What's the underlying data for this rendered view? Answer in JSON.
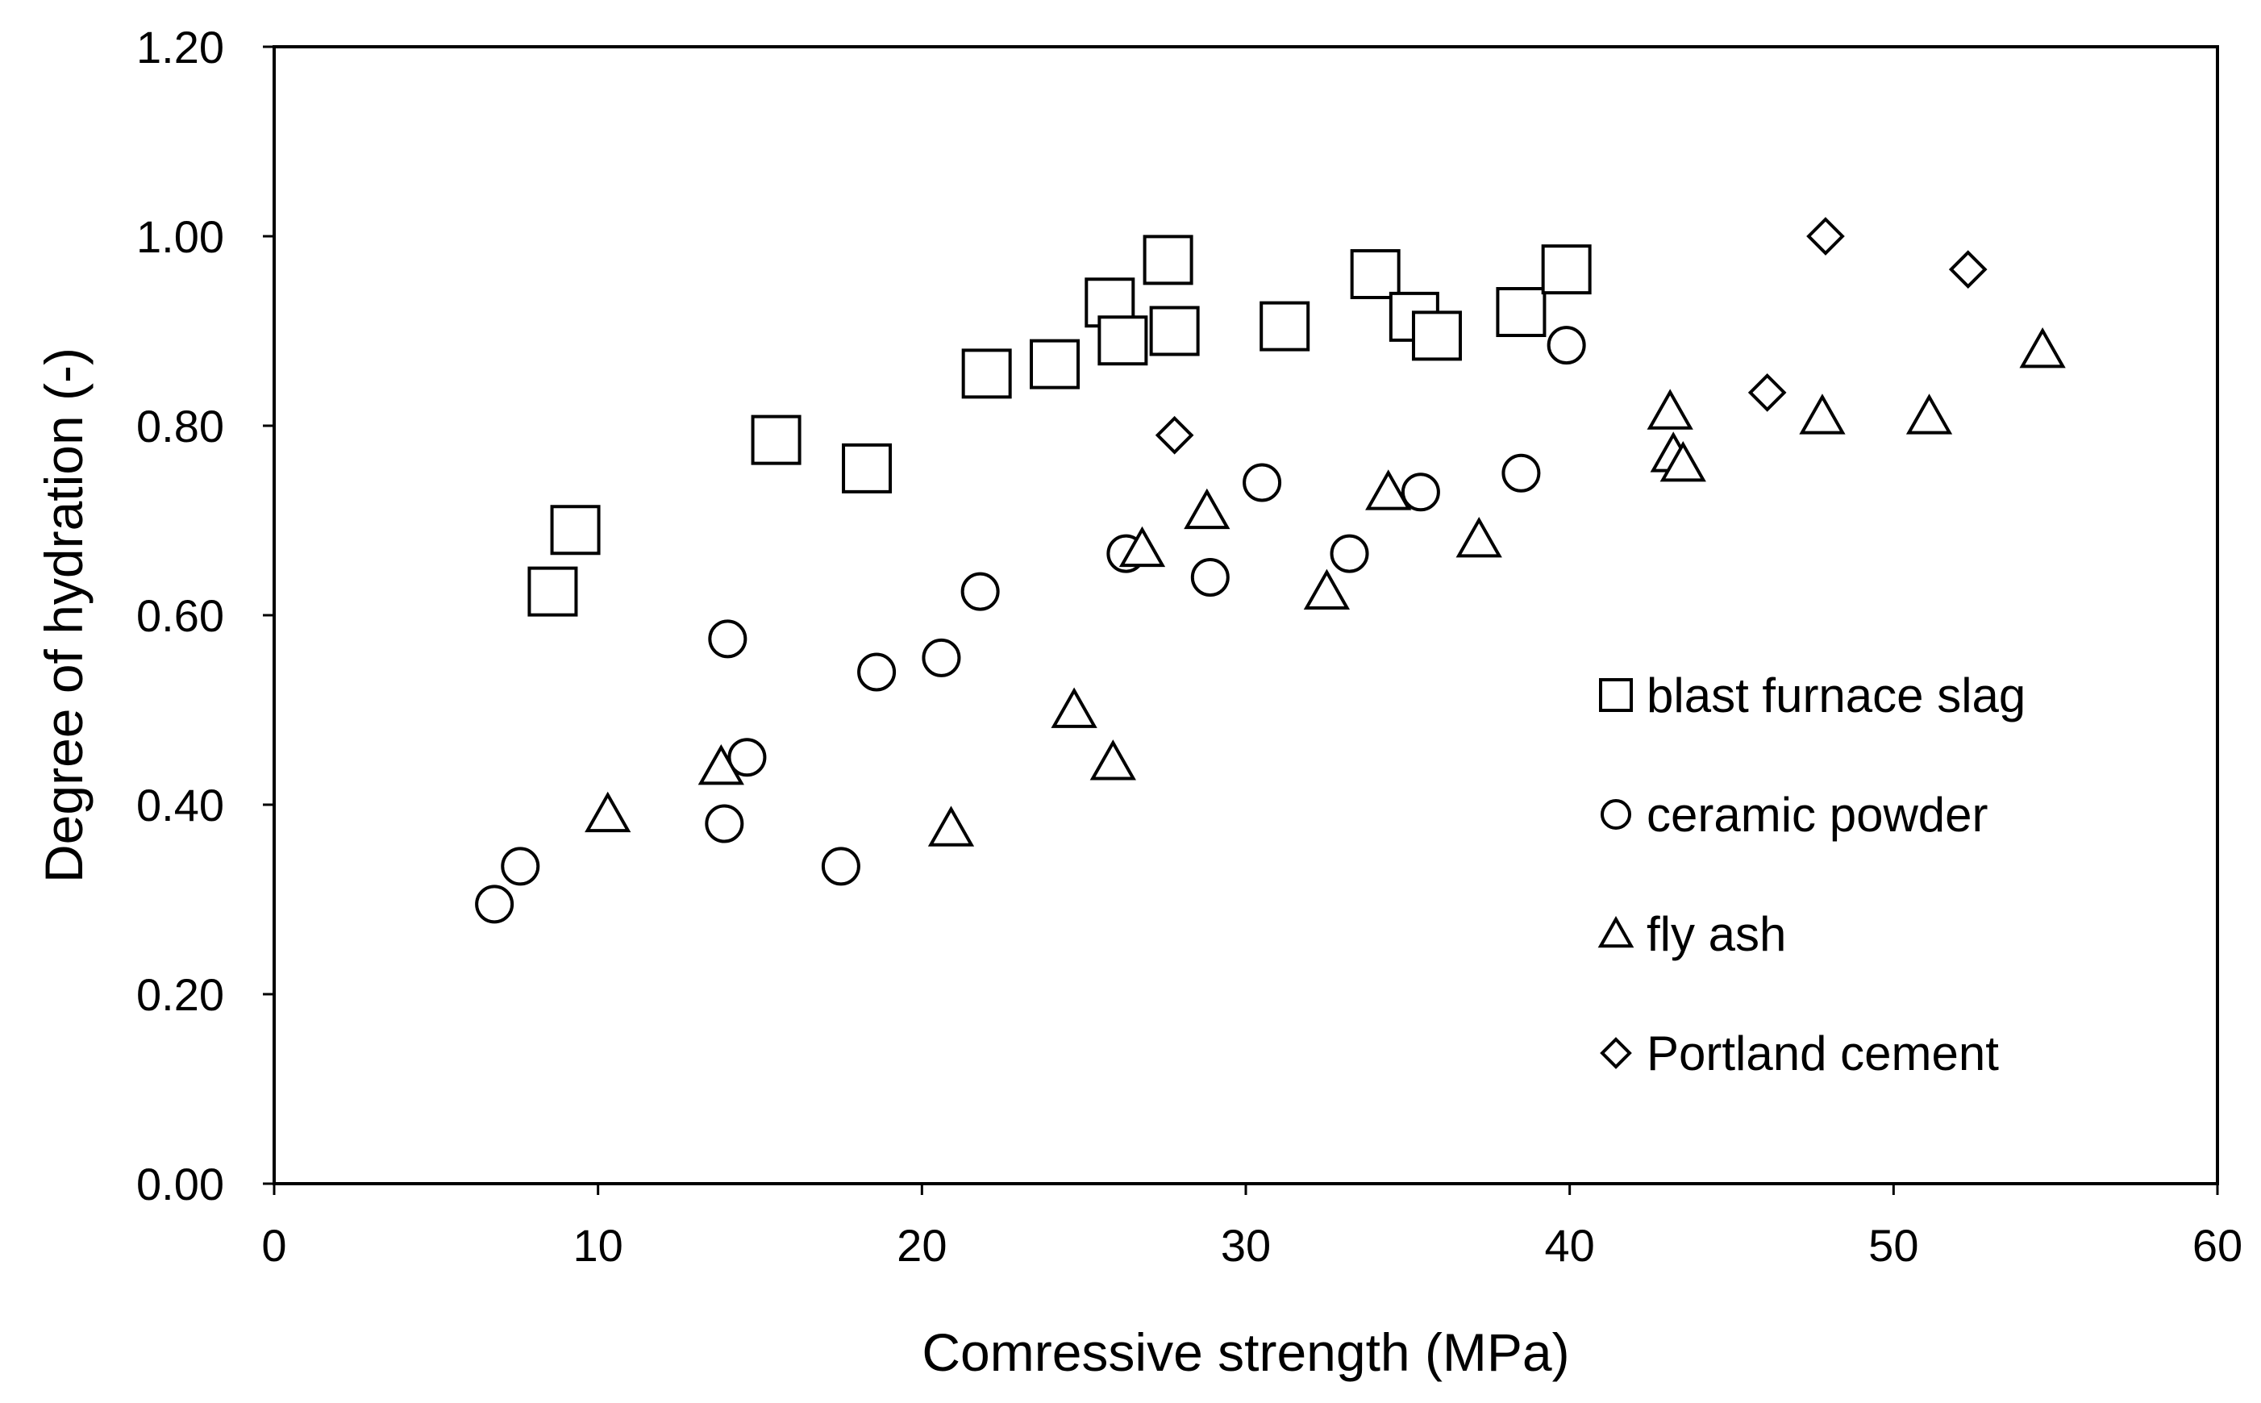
{
  "chart_data": {
    "type": "scatter",
    "title": "",
    "xlabel": "Comressive strength (MPa)",
    "ylabel": "Degree of hydration (-)",
    "xlim": [
      0,
      60
    ],
    "ylim": [
      0,
      1.2
    ],
    "xticks": [
      0,
      10,
      20,
      30,
      40,
      50,
      60
    ],
    "xtick_labels": [
      "0",
      "10",
      "20",
      "30",
      "40",
      "50",
      "60"
    ],
    "yticks": [
      0,
      0.2,
      0.4,
      0.6,
      0.8,
      1.0,
      1.2
    ],
    "ytick_labels": [
      "0.00",
      "0.20",
      "0.40",
      "0.60",
      "0.80",
      "1.00",
      "1.20"
    ],
    "grid": false,
    "legend_position": "right",
    "series": [
      {
        "name": "blast furnace slag",
        "marker": "square",
        "points": [
          [
            8.6,
            0.625
          ],
          [
            9.3,
            0.69
          ],
          [
            15.5,
            0.785
          ],
          [
            18.3,
            0.755
          ],
          [
            22.0,
            0.855
          ],
          [
            24.1,
            0.865
          ],
          [
            25.8,
            0.93
          ],
          [
            26.2,
            0.89
          ],
          [
            27.6,
            0.975
          ],
          [
            27.8,
            0.9
          ],
          [
            31.2,
            0.905
          ],
          [
            34.0,
            0.96
          ],
          [
            35.2,
            0.915
          ],
          [
            35.9,
            0.895
          ],
          [
            38.5,
            0.92
          ],
          [
            39.9,
            0.965
          ]
        ]
      },
      {
        "name": "ceramic powder",
        "marker": "circle",
        "points": [
          [
            6.8,
            0.295
          ],
          [
            7.6,
            0.335
          ],
          [
            13.9,
            0.38
          ],
          [
            14.0,
            0.575
          ],
          [
            14.6,
            0.45
          ],
          [
            17.5,
            0.335
          ],
          [
            18.6,
            0.54
          ],
          [
            20.6,
            0.555
          ],
          [
            21.8,
            0.625
          ],
          [
            26.3,
            0.665
          ],
          [
            28.9,
            0.64
          ],
          [
            30.5,
            0.74
          ],
          [
            33.2,
            0.665
          ],
          [
            35.4,
            0.73
          ],
          [
            38.5,
            0.75
          ],
          [
            39.9,
            0.885
          ]
        ]
      },
      {
        "name": "fly ash",
        "marker": "triangle",
        "points": [
          [
            10.3,
            0.39
          ],
          [
            13.8,
            0.44
          ],
          [
            20.9,
            0.375
          ],
          [
            24.7,
            0.5
          ],
          [
            25.9,
            0.445
          ],
          [
            26.8,
            0.67
          ],
          [
            28.8,
            0.71
          ],
          [
            32.5,
            0.625
          ],
          [
            34.4,
            0.73
          ],
          [
            37.2,
            0.68
          ],
          [
            43.1,
            0.815
          ],
          [
            43.2,
            0.77
          ],
          [
            43.5,
            0.76
          ],
          [
            47.8,
            0.81
          ],
          [
            51.1,
            0.81
          ],
          [
            54.6,
            0.88
          ]
        ]
      },
      {
        "name": "Portland cement",
        "marker": "diamond",
        "points": [
          [
            27.8,
            0.79
          ],
          [
            46.1,
            0.835
          ],
          [
            47.9,
            1.0
          ],
          [
            52.3,
            0.965
          ]
        ]
      }
    ]
  }
}
